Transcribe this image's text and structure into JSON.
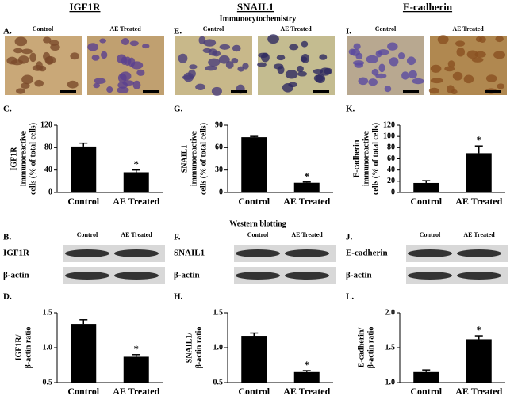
{
  "figure": {
    "columns": [
      {
        "heading": "IGF1R",
        "icc_panel": "A.",
        "wb_panel": "B.",
        "blot_rows": [
          "IGF1R",
          "β-actin"
        ]
      },
      {
        "heading": "SNAIL1",
        "icc_panel": "E.",
        "wb_panel": "F.",
        "blot_rows": [
          "SNAIL1",
          "β-actin"
        ]
      },
      {
        "heading": "E-cadherin",
        "icc_panel": "I.",
        "wb_panel": "J.",
        "blot_rows": [
          "E-cadherin",
          "β-actin"
        ]
      }
    ],
    "image_labels": [
      "Control",
      "AE Treated"
    ],
    "icc_title": "Immunocytochemistry",
    "wb_title": "Western blotting"
  },
  "chart_data": [
    {
      "type": "bar",
      "panel_label": "C.",
      "ylabel": [
        "IGF1R",
        "immunoreactive",
        "cells (% of total cells)"
      ],
      "categories": [
        "Control",
        "AE Treated"
      ],
      "values": [
        82,
        36
      ],
      "errors": [
        6,
        4
      ],
      "color": "#000000",
      "ylim": [
        0,
        120
      ],
      "yticks": [
        0,
        40,
        80,
        120
      ],
      "annotation": "*"
    },
    {
      "type": "bar",
      "panel_label": "G.",
      "ylabel": [
        "SNAIL1",
        "immunoreactive",
        "cells (% of total cells)"
      ],
      "categories": [
        "Control",
        "AE Treated"
      ],
      "values": [
        74,
        13
      ],
      "errors": [
        1,
        1
      ],
      "color": "#000000",
      "ylim": [
        0,
        90
      ],
      "yticks": [
        0,
        30,
        60,
        90
      ],
      "annotation": "*"
    },
    {
      "type": "bar",
      "panel_label": "K.",
      "ylabel": [
        "E-cadherin",
        "immunoreactive",
        "cells (% of total cells)"
      ],
      "categories": [
        "Control",
        "AE Treated"
      ],
      "values": [
        17,
        70
      ],
      "errors": [
        4,
        13
      ],
      "color": "#000000",
      "ylim": [
        0,
        120
      ],
      "yticks": [
        0,
        20,
        40,
        60,
        80,
        100,
        120
      ],
      "annotation": "*"
    },
    {
      "type": "bar",
      "panel_label": "D.",
      "ylabel": [
        "IGF1R/",
        "β-actin ratio"
      ],
      "categories": [
        "Control",
        "AE Treated"
      ],
      "values": [
        1.34,
        0.87
      ],
      "errors": [
        0.06,
        0.03
      ],
      "color": "#000000",
      "ylim": [
        0.5,
        1.5
      ],
      "yticks": [
        {
          "value": 0.5,
          "label": "0.5"
        },
        {
          "value": 1,
          "label": "1.0"
        },
        {
          "value": 1.5,
          "label": "1.5"
        }
      ],
      "annotation": "*"
    },
    {
      "type": "bar",
      "panel_label": "H.",
      "ylabel": [
        "SNAIL1/",
        "β-actin ratio"
      ],
      "categories": [
        "Control",
        "AE Treated"
      ],
      "values": [
        1.17,
        0.65
      ],
      "errors": [
        0.04,
        0.02
      ],
      "color": "#000000",
      "ylim": [
        0.5,
        1.5
      ],
      "yticks": [
        {
          "value": 0.5,
          "label": "0.5"
        },
        {
          "value": 1,
          "label": "1.0"
        },
        {
          "value": 1.5,
          "label": "1.5"
        }
      ],
      "annotation": "*"
    },
    {
      "type": "bar",
      "panel_label": "L.",
      "ylabel": [
        "E-cadherin/",
        "β-actin ratio"
      ],
      "categories": [
        "Control",
        "AE Treated"
      ],
      "values": [
        1.15,
        1.62
      ],
      "errors": [
        0.03,
        0.05
      ],
      "color": "#000000",
      "ylim": [
        1.0,
        2.0
      ],
      "yticks": [
        {
          "value": 1,
          "label": "1.0"
        },
        {
          "value": 1.5,
          "label": "1.5"
        },
        {
          "value": 2,
          "label": "2.0"
        }
      ],
      "annotation": "*"
    }
  ]
}
